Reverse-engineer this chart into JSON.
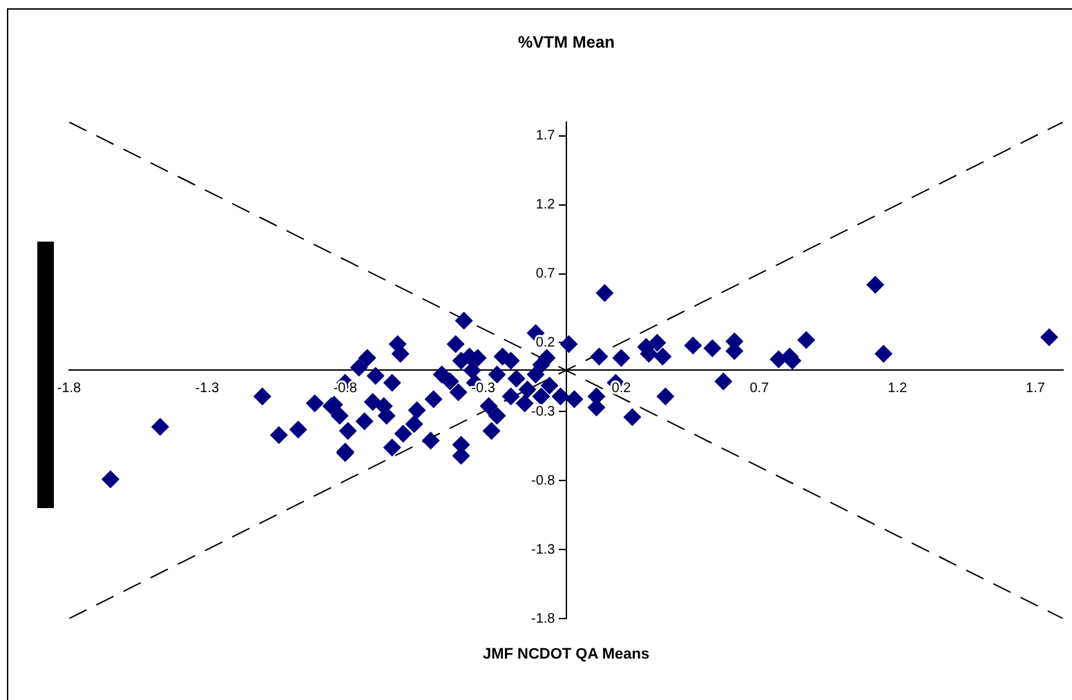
{
  "chart_data": {
    "type": "scatter",
    "title": "%VTM Mean",
    "xlabel": "JMF NCDOT QA Means",
    "xlim": [
      -1.8,
      1.8
    ],
    "ylim": [
      -1.8,
      1.8
    ],
    "xticks": [
      -1.8,
      -1.3,
      -0.8,
      -0.3,
      0.2,
      0.7,
      1.2,
      1.7
    ],
    "yticks": [
      -1.8,
      -1.3,
      -0.8,
      -0.3,
      0.2,
      0.7,
      1.2,
      1.7
    ],
    "grid": false,
    "legend": false,
    "marker": "diamond",
    "series": [
      {
        "color": "#000080",
        "x": [
          -1.65,
          -1.47,
          -1.1,
          -1.04,
          -0.97,
          -0.91,
          -0.84,
          -0.8,
          -0.37,
          -0.11,
          0.01,
          -0.4,
          -0.61,
          -0.6,
          -0.72,
          -0.75,
          -0.8,
          -0.85,
          -0.82,
          -0.79,
          -0.73,
          -0.8,
          -0.7,
          -0.66,
          -0.63,
          -0.65,
          -0.54,
          -0.55,
          -0.59,
          -0.63,
          -0.49,
          -0.48,
          -0.45,
          -0.42,
          -0.38,
          -0.35,
          -0.32,
          -0.39,
          -0.38,
          -0.38,
          -0.28,
          -0.25,
          -0.27,
          -0.33,
          -0.23,
          -0.2,
          -0.25,
          -0.18,
          -0.14,
          -0.2,
          -0.09,
          -0.07,
          -0.11,
          -0.06,
          -0.09,
          -0.02,
          0.03,
          -0.15,
          -0.34,
          -0.69,
          0.14,
          0.12,
          0.2,
          0.18,
          0.29,
          0.33,
          0.3,
          0.35,
          0.46,
          0.53,
          0.61,
          0.61,
          0.57,
          0.36,
          0.24,
          0.11,
          0.11,
          0.77,
          0.81,
          0.82,
          0.87,
          1.12,
          1.15,
          1.75
        ],
        "values": [
          -0.79,
          -0.41,
          -0.19,
          -0.47,
          -0.43,
          -0.24,
          -0.25,
          -0.6,
          0.36,
          0.27,
          0.19,
          0.19,
          0.19,
          0.12,
          0.09,
          0.02,
          -0.09,
          -0.26,
          -0.33,
          -0.44,
          -0.37,
          -0.59,
          -0.23,
          -0.26,
          -0.09,
          -0.33,
          -0.29,
          -0.39,
          -0.46,
          -0.56,
          -0.51,
          -0.21,
          -0.03,
          -0.08,
          0.07,
          0.1,
          0.09,
          -0.16,
          -0.54,
          -0.62,
          -0.26,
          -0.33,
          -0.44,
          -0.09,
          0.1,
          0.07,
          -0.03,
          -0.06,
          -0.14,
          -0.19,
          0.04,
          0.09,
          -0.03,
          -0.11,
          -0.19,
          -0.19,
          -0.21,
          -0.24,
          0.0,
          -0.04,
          0.56,
          0.1,
          0.09,
          -0.09,
          0.17,
          0.2,
          0.12,
          0.1,
          0.18,
          0.16,
          0.21,
          0.14,
          -0.08,
          -0.19,
          -0.34,
          -0.19,
          -0.27,
          0.08,
          0.1,
          0.07,
          0.22,
          0.62,
          0.12,
          0.24
        ]
      },
      {
        "type": "line",
        "color": "#000000",
        "line_style": "dashed",
        "marker": "none",
        "x": [
          -1.8,
          1.8
        ],
        "values": [
          -1.8,
          1.8
        ]
      },
      {
        "type": "line",
        "color": "#000000",
        "line_style": "dashed",
        "marker": "none",
        "x": [
          -1.8,
          1.8
        ],
        "values": [
          1.8,
          -1.8
        ]
      }
    ]
  }
}
